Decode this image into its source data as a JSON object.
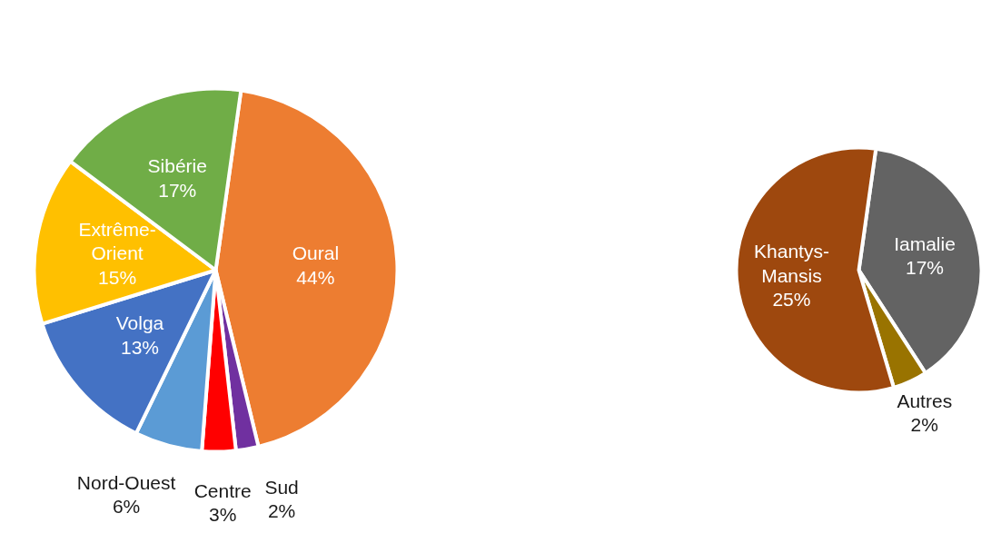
{
  "chart_data": [
    {
      "type": "pie",
      "categories": [
        "Oural",
        "Sud",
        "Centre",
        "Nord-Ouest",
        "Volga",
        "Extrême-Orient",
        "Sibérie"
      ],
      "values": [
        44,
        2,
        3,
        6,
        13,
        15,
        17
      ],
      "colors": [
        "#ed7d31",
        "#7030a0",
        "#ff0000",
        "#5b9bd5",
        "#4472c4",
        "#ffc000",
        "#70ad47"
      ],
      "value_labels": [
        "44%",
        "2%",
        "3%",
        "6%",
        "13%",
        "15%",
        "17%"
      ]
    },
    {
      "type": "pie",
      "categories": [
        "Iamalie",
        "Autres",
        "Khantys-Mansis"
      ],
      "values": [
        17,
        2,
        25
      ],
      "colors": [
        "#636363",
        "#997300",
        "#9e480e"
      ],
      "value_labels": [
        "17%",
        "2%",
        "25%"
      ]
    }
  ]
}
